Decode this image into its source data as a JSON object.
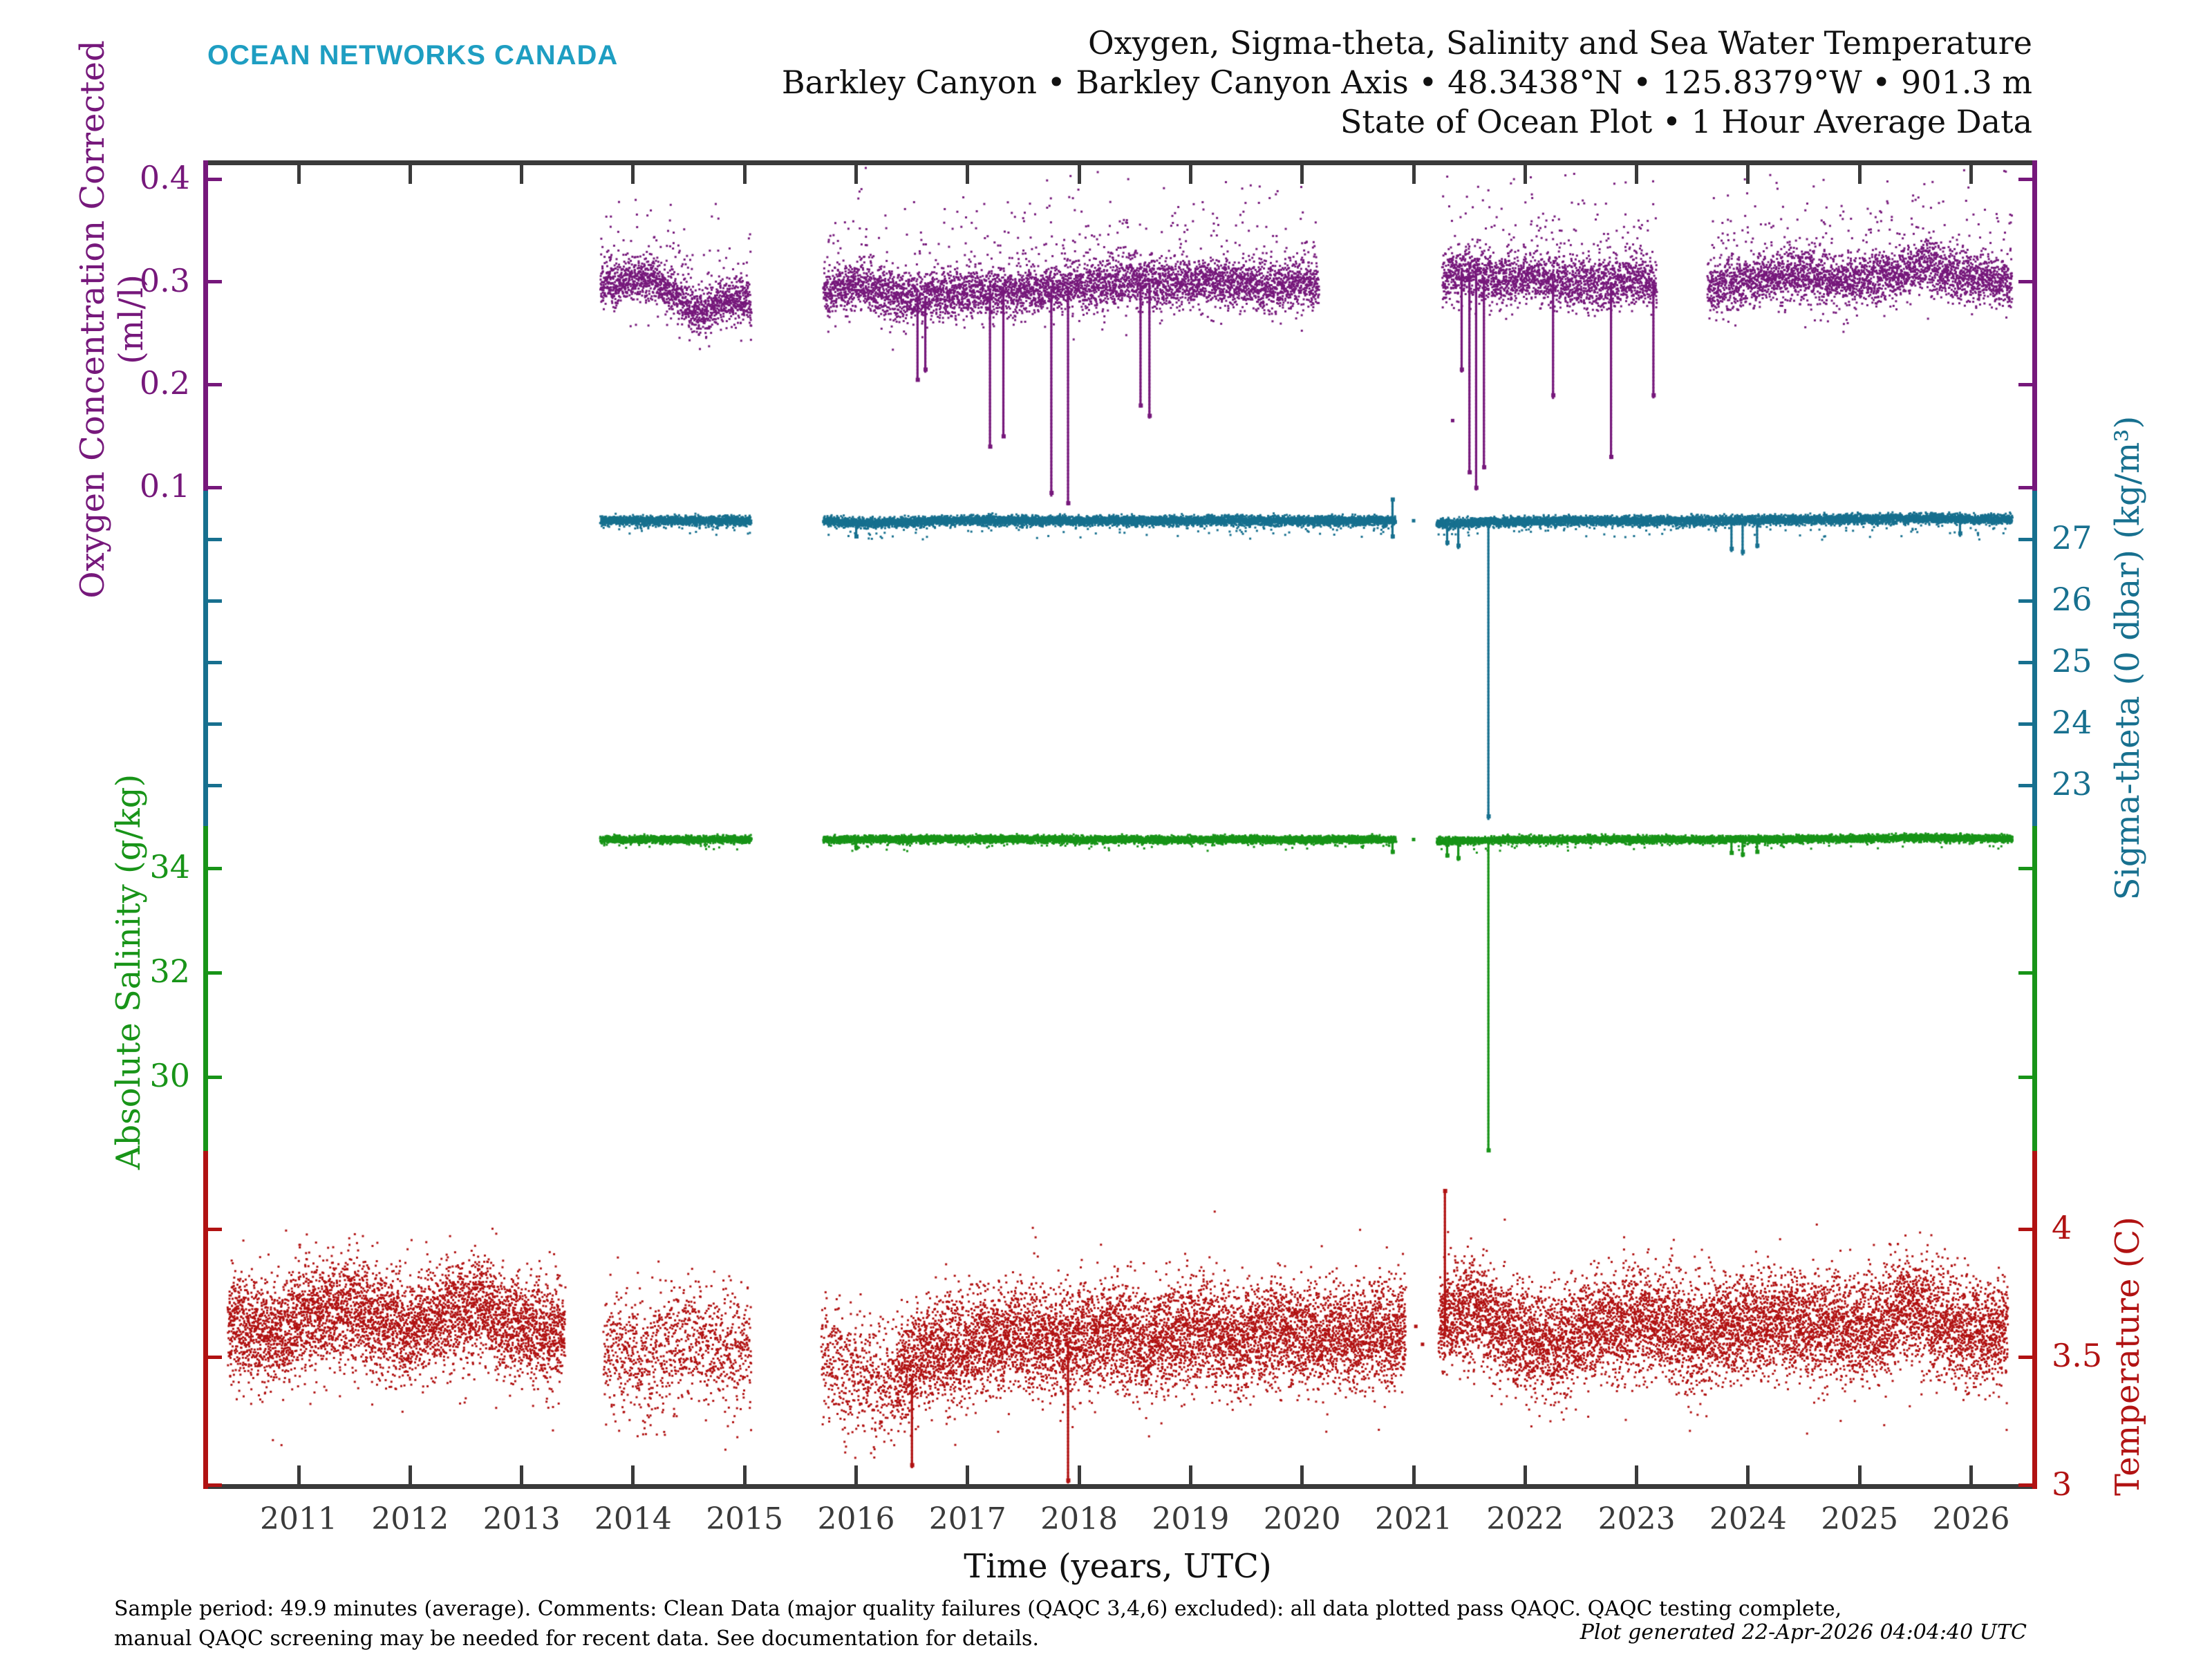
{
  "header": {
    "logo": "OCEAN NETWORKS CANADA",
    "logo_color": "#1E9EC2",
    "title_line1": "Oxygen, Sigma-theta, Salinity and Sea Water Temperature",
    "title_line2": "Barkley Canyon • Barkley Canyon Axis • 48.3438°N • 125.8379°W • 901.3 m",
    "title_line3": "State of Ocean Plot • 1 Hour Average Data"
  },
  "caption": {
    "line1": "Sample period: 49.9 minutes (average). Comments: Clean Data (major quality failures (QAQC 3,4,6) excluded): all data plotted pass QAQC. QAQC testing complete,",
    "line2": "manual QAQC screening may be needed for recent data. See documentation for details.",
    "generated": "Plot generated 22-Apr-2026 04:04:40 UTC"
  },
  "chart_data": {
    "type": "scatter",
    "title": "Oxygen, Sigma-theta, Salinity and Sea Water Temperature",
    "x_axis": {
      "label": "Time (years, UTC)",
      "tick_years": [
        "2011",
        "2012",
        "2013",
        "2014",
        "2015",
        "2016",
        "2017",
        "2018",
        "2019",
        "2020",
        "2021",
        "2022",
        "2023",
        "2024",
        "2025",
        "2026"
      ],
      "range": [
        2010.14,
        2026.56
      ]
    },
    "axes": [
      {
        "id": "oxygen",
        "label": "Oxygen Concentration Corrected",
        "label2": "(ml/l)",
        "color": "#76187B",
        "side": "left",
        "ticks": [
          [
            0.4,
            "0.4"
          ],
          [
            0.3,
            "0.3"
          ],
          [
            0.2,
            "0.2"
          ],
          [
            0.1,
            "0.1"
          ]
        ],
        "range": [
          0.082,
          0.418
        ]
      },
      {
        "id": "sigma",
        "label": "Sigma-theta (0 dbar) (kg/m³)",
        "color": "#17708F",
        "side": "right",
        "ticks": [
          [
            27,
            "27"
          ],
          [
            26,
            "26"
          ],
          [
            25,
            "25"
          ],
          [
            24,
            "24"
          ],
          [
            23,
            "23"
          ]
        ],
        "range": [
          21.4,
          27.6
        ]
      },
      {
        "id": "salinity",
        "label": "Absolute Salinity (g/kg)",
        "color": "#189418",
        "side": "left",
        "ticks": [
          [
            34,
            "34"
          ],
          [
            32,
            "32"
          ],
          [
            30,
            "30"
          ]
        ],
        "range": [
          28.0,
          34.9
        ]
      },
      {
        "id": "temperature",
        "label": "Temperature (C)",
        "color": "#B11212",
        "side": "right",
        "ticks": [
          [
            4,
            "4"
          ],
          [
            3.5,
            "3.5"
          ],
          [
            3,
            "3"
          ]
        ],
        "range": [
          2.98,
          4.2
        ]
      }
    ],
    "series": [
      {
        "name": "oxygen_concentration",
        "axis": "oxygen",
        "color": "#76187B",
        "unit": "ml/l",
        "baseline": 0.3,
        "segments": [
          {
            "t0": 2013.7,
            "t1": 2015.05,
            "sigma": 0.012,
            "density": 3,
            "up": 0.12,
            "upmax": 0.1,
            "dn": 0.06,
            "dnmax": 0.05,
            "levels": [
              [
                2013.7,
                0.295
              ],
              [
                2013.95,
                0.301
              ],
              [
                2014.15,
                0.303
              ],
              [
                2014.35,
                0.289
              ],
              [
                2014.5,
                0.272
              ],
              [
                2014.65,
                0.27
              ],
              [
                2014.8,
                0.282
              ],
              [
                2015.05,
                0.283
              ]
            ]
          },
          {
            "t0": 2015.7,
            "t1": 2020.14,
            "sigma": 0.013,
            "density": 3,
            "up": 0.12,
            "upmax": 0.11,
            "dn": 0.06,
            "dnmax": 0.05,
            "levels": [
              [
                2015.7,
                0.29
              ],
              [
                2016.0,
                0.297
              ],
              [
                2016.4,
                0.284
              ],
              [
                2016.8,
                0.288
              ],
              [
                2017.2,
                0.29
              ],
              [
                2017.6,
                0.292
              ],
              [
                2018.0,
                0.296
              ],
              [
                2018.4,
                0.301
              ],
              [
                2018.8,
                0.297
              ],
              [
                2019.2,
                0.301
              ],
              [
                2019.6,
                0.296
              ],
              [
                2020.14,
                0.298
              ]
            ]
          },
          {
            "t0": 2021.25,
            "t1": 2023.17,
            "sigma": 0.014,
            "density": 3,
            "up": 0.12,
            "upmax": 0.11,
            "dn": 0.06,
            "dnmax": 0.05,
            "levels": [
              [
                2021.25,
                0.3
              ],
              [
                2021.45,
                0.311
              ],
              [
                2021.7,
                0.3
              ],
              [
                2022.0,
                0.306
              ],
              [
                2022.3,
                0.3
              ],
              [
                2022.6,
                0.298
              ],
              [
                2022.9,
                0.301
              ],
              [
                2023.17,
                0.298
              ]
            ]
          },
          {
            "t0": 2023.63,
            "t1": 2026.36,
            "sigma": 0.014,
            "density": 3,
            "up": 0.12,
            "upmax": 0.11,
            "dn": 0.06,
            "dnmax": 0.05,
            "levels": [
              [
                2023.63,
                0.294
              ],
              [
                2024.0,
                0.3
              ],
              [
                2024.4,
                0.309
              ],
              [
                2024.8,
                0.3
              ],
              [
                2025.2,
                0.305
              ],
              [
                2025.6,
                0.316
              ],
              [
                2025.9,
                0.306
              ],
              [
                2026.36,
                0.3
              ]
            ]
          }
        ],
        "spikes": [
          [
            2016.55,
            0.205
          ],
          [
            2016.62,
            0.215
          ],
          [
            2017.2,
            0.14
          ],
          [
            2017.32,
            0.15
          ],
          [
            2017.75,
            0.095
          ],
          [
            2017.9,
            0.085
          ],
          [
            2018.55,
            0.18
          ],
          [
            2018.63,
            0.17
          ],
          [
            2021.43,
            0.215
          ],
          [
            2021.5,
            0.115
          ],
          [
            2021.56,
            0.1
          ],
          [
            2021.63,
            0.12
          ],
          [
            2022.25,
            0.19
          ],
          [
            2022.77,
            0.13
          ],
          [
            2023.15,
            0.19
          ]
        ],
        "isolated_points": [
          [
            2021.35,
            0.165
          ]
        ]
      },
      {
        "name": "sigma_theta",
        "axis": "sigma",
        "color": "#17708F",
        "unit": "kg/m³",
        "baseline": 27.3,
        "segments": [
          {
            "t0": 2013.7,
            "t1": 2015.05,
            "sigma": 0.045,
            "density": 3,
            "dn": 0.05,
            "dnmax": 0.25,
            "levels": [
              [
                2013.7,
                27.3
              ],
              [
                2015.05,
                27.3
              ]
            ]
          },
          {
            "t0": 2015.7,
            "t1": 2020.83,
            "sigma": 0.045,
            "density": 3,
            "dn": 0.05,
            "dnmax": 0.3,
            "levels": [
              [
                2015.7,
                27.3
              ],
              [
                2016.1,
                27.26
              ],
              [
                2017.0,
                27.31
              ],
              [
                2018.0,
                27.3
              ],
              [
                2019.0,
                27.3
              ],
              [
                2020.83,
                27.3
              ]
            ]
          },
          {
            "t0": 2021.2,
            "t1": 2026.36,
            "sigma": 0.045,
            "density": 3,
            "dn": 0.05,
            "dnmax": 0.3,
            "levels": [
              [
                2021.2,
                27.25
              ],
              [
                2021.7,
                27.28
              ],
              [
                2022.5,
                27.3
              ],
              [
                2023.5,
                27.3
              ],
              [
                2024.5,
                27.32
              ],
              [
                2025.5,
                27.34
              ],
              [
                2026.36,
                27.32
              ]
            ]
          }
        ],
        "spikes": [
          [
            2020.81,
            27.65
          ],
          [
            2020.81,
            27.05
          ],
          [
            2021.67,
            22.5
          ],
          [
            2021.3,
            26.95
          ],
          [
            2021.4,
            26.9
          ],
          [
            2023.85,
            26.85
          ],
          [
            2023.95,
            26.8
          ],
          [
            2024.08,
            26.9
          ],
          [
            2016.0,
            27.05
          ],
          [
            2025.9,
            27.1
          ]
        ],
        "isolated_points": [
          [
            2021.0,
            27.3
          ]
        ]
      },
      {
        "name": "absolute_salinity",
        "axis": "salinity",
        "color": "#189418",
        "unit": "g/kg",
        "baseline": 34.55,
        "segments": [
          {
            "t0": 2013.7,
            "t1": 2015.05,
            "sigma": 0.04,
            "density": 3,
            "dn": 0.04,
            "dnmax": 0.2,
            "levels": [
              [
                2013.7,
                34.55
              ],
              [
                2015.05,
                34.55
              ]
            ]
          },
          {
            "t0": 2015.7,
            "t1": 2020.83,
            "sigma": 0.04,
            "density": 3,
            "dn": 0.04,
            "dnmax": 0.22,
            "levels": [
              [
                2015.7,
                34.55
              ],
              [
                2017.0,
                34.56
              ],
              [
                2018.5,
                34.55
              ],
              [
                2020.83,
                34.55
              ]
            ]
          },
          {
            "t0": 2021.2,
            "t1": 2026.36,
            "sigma": 0.04,
            "density": 3,
            "dn": 0.04,
            "dnmax": 0.22,
            "levels": [
              [
                2021.2,
                34.52
              ],
              [
                2022.0,
                34.55
              ],
              [
                2023.5,
                34.55
              ],
              [
                2024.5,
                34.56
              ],
              [
                2025.5,
                34.58
              ],
              [
                2026.36,
                34.57
              ]
            ]
          }
        ],
        "spikes": [
          [
            2021.67,
            28.6
          ],
          [
            2021.3,
            34.25
          ],
          [
            2021.4,
            34.2
          ],
          [
            2020.81,
            34.32
          ],
          [
            2023.85,
            34.3
          ],
          [
            2023.95,
            34.27
          ],
          [
            2024.08,
            34.32
          ],
          [
            2016.0,
            34.4
          ]
        ],
        "isolated_points": [
          [
            2021.0,
            34.55
          ]
        ]
      },
      {
        "name": "sea_water_temperature",
        "axis": "temperature",
        "color": "#B11212",
        "unit": "C",
        "baseline": 3.6,
        "segments": [
          {
            "t0": 2010.36,
            "t1": 2013.38,
            "sigma": 0.115,
            "density": 4,
            "up": 0.08,
            "upmax": 0.28,
            "dn": 0.08,
            "dnmax": 0.3,
            "levels": [
              [
                2010.36,
                3.62
              ],
              [
                2010.8,
                3.58
              ],
              [
                2011.1,
                3.66
              ],
              [
                2011.5,
                3.68
              ],
              [
                2011.9,
                3.6
              ],
              [
                2012.3,
                3.66
              ],
              [
                2012.6,
                3.7
              ],
              [
                2012.9,
                3.62
              ],
              [
                2013.38,
                3.6
              ]
            ]
          },
          {
            "t0": 2013.73,
            "t1": 2015.05,
            "sigma": 0.135,
            "density": 2,
            "up": 0.05,
            "upmax": 0.3,
            "dn": 0.09,
            "dnmax": 0.32,
            "levels": [
              [
                2013.73,
                3.55
              ],
              [
                2014.1,
                3.5
              ],
              [
                2014.4,
                3.56
              ],
              [
                2014.7,
                3.56
              ],
              [
                2015.05,
                3.52
              ]
            ]
          },
          {
            "t0": 2015.68,
            "t1": 2016.35,
            "sigma": 0.135,
            "density": 2,
            "up": 0.04,
            "upmax": 0.25,
            "dn": 0.1,
            "dnmax": 0.32,
            "levels": [
              [
                2015.68,
                3.5
              ],
              [
                2015.9,
                3.45
              ],
              [
                2016.1,
                3.4
              ],
              [
                2016.35,
                3.42
              ]
            ]
          },
          {
            "t0": 2016.35,
            "t1": 2020.92,
            "sigma": 0.115,
            "density": 4,
            "up": 0.08,
            "upmax": 0.28,
            "dn": 0.08,
            "dnmax": 0.3,
            "levels": [
              [
                2016.35,
                3.42
              ],
              [
                2016.6,
                3.52
              ],
              [
                2017.0,
                3.55
              ],
              [
                2017.4,
                3.58
              ],
              [
                2017.8,
                3.55
              ],
              [
                2018.2,
                3.6
              ],
              [
                2018.6,
                3.55
              ],
              [
                2019.0,
                3.6
              ],
              [
                2019.4,
                3.56
              ],
              [
                2019.8,
                3.6
              ],
              [
                2020.3,
                3.58
              ],
              [
                2020.92,
                3.6
              ]
            ]
          },
          {
            "t0": 2021.22,
            "t1": 2026.32,
            "sigma": 0.115,
            "density": 4,
            "up": 0.08,
            "upmax": 0.28,
            "dn": 0.08,
            "dnmax": 0.3,
            "levels": [
              [
                2021.22,
                3.62
              ],
              [
                2021.5,
                3.7
              ],
              [
                2021.9,
                3.58
              ],
              [
                2022.3,
                3.55
              ],
              [
                2022.7,
                3.62
              ],
              [
                2023.1,
                3.64
              ],
              [
                2023.5,
                3.58
              ],
              [
                2023.9,
                3.62
              ],
              [
                2024.3,
                3.64
              ],
              [
                2024.7,
                3.62
              ],
              [
                2025.1,
                3.6
              ],
              [
                2025.4,
                3.7
              ],
              [
                2025.7,
                3.64
              ],
              [
                2026.0,
                3.58
              ],
              [
                2026.32,
                3.62
              ]
            ]
          }
        ],
        "spikes": [
          [
            2021.28,
            4.15
          ],
          [
            2016.5,
            3.08
          ],
          [
            2017.9,
            3.02
          ]
        ],
        "isolated_points": [
          [
            2021.02,
            3.62
          ],
          [
            2021.08,
            3.55
          ]
        ]
      }
    ],
    "legend": null,
    "grid": false
  }
}
